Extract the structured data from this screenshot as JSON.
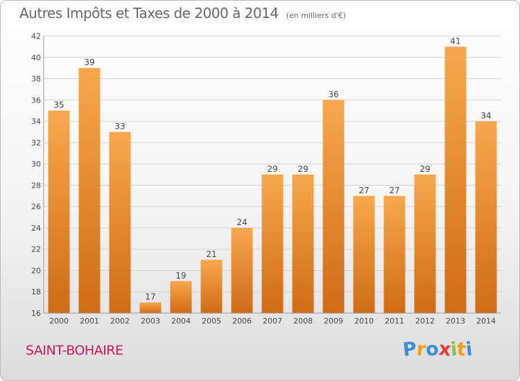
{
  "title": "Autres Impôts et Taxes de 2000 à 2014",
  "subtitle": "(en milliers d'€)",
  "commune": "SAINT-BOHAIRE",
  "logo": {
    "letters": [
      "P",
      "r",
      "o",
      "x",
      "i",
      "t",
      "i"
    ],
    "colors": [
      "#3a8fd6",
      "#f39c12",
      "#3a8fd6",
      "#e53935",
      "#8bc34a",
      "#f39c12",
      "#3a8fd6"
    ]
  },
  "colors": {
    "bar_light": "#f7a84e",
    "bar_dark": "#cf6c15",
    "grid": "#d4d4d4",
    "axis_text": "#444444",
    "commune": "#c2185b"
  },
  "chart_data": {
    "type": "bar",
    "categories": [
      "2000",
      "2001",
      "2002",
      "2003",
      "2004",
      "2005",
      "2006",
      "2007",
      "2008",
      "2009",
      "2010",
      "2011",
      "2012",
      "2013",
      "2014"
    ],
    "values": [
      35,
      39,
      33,
      17,
      19,
      21,
      24,
      29,
      29,
      36,
      27,
      27,
      29,
      41,
      34
    ],
    "ylim": [
      16,
      42
    ],
    "yticks": [
      16,
      18,
      20,
      22,
      24,
      26,
      28,
      30,
      32,
      34,
      36,
      38,
      40,
      42
    ],
    "grid": true,
    "xlabel": "",
    "ylabel": ""
  }
}
